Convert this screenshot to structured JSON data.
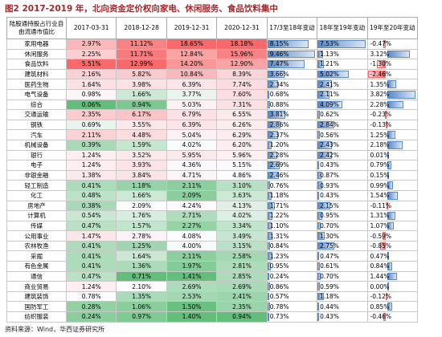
{
  "header": {
    "title": "图2  2017-2019 年，北向资金定价权向家电、休闲服务、食品饮料集中"
  },
  "table": {
    "header": [
      "陆股通持股占行业自由流通市值比",
      "2017-03-31",
      "2018-12-28",
      "2019-12-31",
      "2020-12-31",
      "17/3至18年变动",
      "18年至19年变动",
      "19年至20年变动"
    ],
    "rows": [
      {
        "label": "家用电器",
        "values": [
          2.97,
          11.12,
          18.65,
          18.18,
          8.15,
          7.53,
          -0.47
        ],
        "value_labels": [
          "2.97%",
          "11.12%",
          "18.65%",
          "18.18%",
          "8.15%",
          "7.53%",
          "-0.47%"
        ]
      },
      {
        "label": "休闲服务",
        "values": [
          2.25,
          11.71,
          12.84,
          15.96,
          9.46,
          1.13,
          3.12
        ],
        "value_labels": [
          "2.25%",
          "11.71%",
          "12.84%",
          "15.96%",
          "9.46%",
          "1.13%",
          "3.12%"
        ]
      },
      {
        "label": "食品饮料",
        "values": [
          5.51,
          12.99,
          14.2,
          12.9,
          7.47,
          1.21,
          -1.3
        ],
        "value_labels": [
          "5.51%",
          "12.99%",
          "14.20%",
          "12.90%",
          "7.47%",
          "1.21%",
          "-1.30%"
        ]
      },
      {
        "label": "建筑材料",
        "values": [
          2.16,
          5.82,
          10.84,
          8.39,
          3.66,
          5.02,
          -2.46
        ],
        "value_labels": [
          "2.16%",
          "5.82%",
          "10.84%",
          "8.39%",
          "3.66%",
          "5.02%",
          "-2.46%"
        ]
      },
      {
        "label": "医药生物",
        "values": [
          1.64,
          3.98,
          6.39,
          7.74,
          2.34,
          2.41,
          1.35
        ],
        "value_labels": [
          "1.64%",
          "3.98%",
          "6.39%",
          "7.74%",
          "2.34%",
          "2.41%",
          "1.35%"
        ]
      },
      {
        "label": "电气设备",
        "values": [
          0.98,
          1.66,
          3.77,
          7.6,
          0.68,
          2.11,
          3.82
        ],
        "value_labels": [
          "0.98%",
          "1.66%",
          "3.77%",
          "7.60%",
          "0.68%",
          "2.11%",
          "3.82%"
        ]
      },
      {
        "label": "综合",
        "values": [
          0.06,
          0.94,
          5.03,
          7.31,
          0.88,
          4.09,
          2.28
        ],
        "value_labels": [
          "0.06%",
          "0.94%",
          "5.03%",
          "7.31%",
          "0.88%",
          "4.09%",
          "2.28%"
        ]
      },
      {
        "label": "交通运输",
        "values": [
          2.35,
          6.17,
          6.79,
          6.55,
          3.81,
          0.62,
          -0.23
        ],
        "value_labels": [
          "2.35%",
          "6.17%",
          "6.79%",
          "6.55%",
          "3.81%",
          "0.62%",
          "-0.23%"
        ]
      },
      {
        "label": "钢铁",
        "values": [
          0.69,
          3.55,
          6.39,
          6.26,
          2.86,
          2.84,
          -0.13
        ],
        "value_labels": [
          "0.69%",
          "3.55%",
          "6.39%",
          "6.26%",
          "2.86%",
          "2.84%",
          "-0.13%"
        ]
      },
      {
        "label": "汽车",
        "values": [
          2.11,
          4.48,
          5.04,
          6.29,
          2.37,
          0.56,
          1.25
        ],
        "value_labels": [
          "2.11%",
          "4.48%",
          "5.04%",
          "6.29%",
          "2.37%",
          "0.56%",
          "1.25%"
        ]
      },
      {
        "label": "机械设备",
        "values": [
          0.39,
          1.59,
          4.02,
          6.2,
          1.2,
          2.43,
          2.18
        ],
        "value_labels": [
          "0.39%",
          "1.59%",
          "4.02%",
          "6.20%",
          "1.20%",
          "2.43%",
          "2.18%"
        ]
      },
      {
        "label": "银行",
        "values": [
          1.24,
          3.52,
          5.95,
          5.96,
          2.28,
          2.42,
          0.01
        ],
        "value_labels": [
          "1.24%",
          "3.52%",
          "5.95%",
          "5.96%",
          "2.28%",
          "2.42%",
          "0.01%"
        ]
      },
      {
        "label": "电子",
        "values": [
          1.24,
          3.93,
          4.36,
          5.15,
          2.69,
          0.43,
          0.79
        ],
        "value_labels": [
          "1.24%",
          "3.93%",
          "4.36%",
          "5.15%",
          "2.69%",
          "0.43%",
          "0.79%"
        ]
      },
      {
        "label": "非银金融",
        "values": [
          1.38,
          3.84,
          4.71,
          4.86,
          2.46,
          0.87,
          0.15
        ],
        "value_labels": [
          "1.38%",
          "3.84%",
          "4.71%",
          "4.86%",
          "2.46%",
          "0.87%",
          "0.15%"
        ]
      },
      {
        "label": "轻工制造",
        "values": [
          0.41,
          1.18,
          2.11,
          3.1,
          0.76,
          0.93,
          0.99
        ],
        "value_labels": [
          "0.41%",
          "1.18%",
          "2.11%",
          "3.10%",
          "0.76%",
          "0.93%",
          "0.99%"
        ]
      },
      {
        "label": "化工",
        "values": [
          0.48,
          1.66,
          2.09,
          3.63,
          1.18,
          0.43,
          1.54
        ],
        "value_labels": [
          "0.48%",
          "1.66%",
          "2.09%",
          "3.63%",
          "1.18%",
          "0.43%",
          "1.54%"
        ]
      },
      {
        "label": "房地产",
        "values": [
          0.38,
          2.09,
          4.24,
          4.13,
          1.71,
          2.15,
          -0.11
        ],
        "value_labels": [
          "0.38%",
          "2.09%",
          "4.24%",
          "4.13%",
          "1.71%",
          "2.15%",
          "-0.11%"
        ]
      },
      {
        "label": "计算机",
        "values": [
          0.54,
          1.76,
          2.71,
          4.02,
          1.22,
          0.95,
          1.31
        ],
        "value_labels": [
          "0.54%",
          "1.76%",
          "2.71%",
          "4.02%",
          "1.22%",
          "0.95%",
          "1.31%"
        ]
      },
      {
        "label": "传媒",
        "values": [
          0.47,
          1.57,
          2.27,
          3.34,
          1.1,
          0.7,
          1.07
        ],
        "value_labels": [
          "0.47%",
          "1.57%",
          "2.27%",
          "3.34%",
          "1.10%",
          "0.70%",
          "1.07%"
        ]
      },
      {
        "label": "公用事业",
        "values": [
          1.47,
          2.78,
          4.08,
          3.49,
          1.31,
          1.3,
          -0.59
        ],
        "value_labels": [
          "1.47%",
          "2.78%",
          "4.08%",
          "3.49%",
          "1.31%",
          "1.30%",
          "-0.59%"
        ]
      },
      {
        "label": "农林牧渔",
        "values": [
          0.41,
          1.25,
          4.0,
          3.15,
          0.84,
          2.75,
          -0.85
        ],
        "value_labels": [
          "0.41%",
          "1.25%",
          "4.00%",
          "3.15%",
          "0.84%",
          "2.75%",
          "-0.85%"
        ]
      },
      {
        "label": "采掘",
        "values": [
          0.41,
          1.64,
          2.11,
          2.58,
          1.23,
          0.47,
          0.47
        ],
        "value_labels": [
          "0.41%",
          "1.64%",
          "2.11%",
          "2.58%",
          "1.23%",
          "0.47%",
          "0.47%"
        ]
      },
      {
        "label": "有色金属",
        "values": [
          0.41,
          1.36,
          1.97,
          2.81,
          0.95,
          0.61,
          0.84
        ],
        "value_labels": [
          "0.41%",
          "1.36%",
          "1.97%",
          "2.81%",
          "0.95%",
          "0.61%",
          "0.84%"
        ]
      },
      {
        "label": "通信",
        "values": [
          0.47,
          0.71,
          1.41,
          2.85,
          0.24,
          0.7,
          1.44
        ],
        "value_labels": [
          "0.47%",
          "0.71%",
          "1.41%",
          "2.85%",
          "0.24%",
          "0.70%",
          "1.44%"
        ]
      },
      {
        "label": "商业贸易",
        "values": [
          1.24,
          2.1,
          2.69,
          2.69,
          0.86,
          0.59,
          0.0
        ],
        "value_labels": [
          "1.24%",
          "2.10%",
          "2.69%",
          "2.69%",
          "0.86%",
          "0.59%",
          "0.00%"
        ]
      },
      {
        "label": "建筑装饰",
        "values": [
          0.78,
          1.35,
          2.53,
          2.41,
          0.57,
          1.18,
          -0.12
        ],
        "value_labels": [
          "0.78%",
          "1.35%",
          "2.53%",
          "2.41%",
          "0.57%",
          "1.18%",
          "-0.12%"
        ]
      },
      {
        "label": "国防军工",
        "values": [
          0.28,
          1.06,
          1.5,
          2.35,
          0.78,
          0.44,
          0.85
        ],
        "value_labels": [
          "0.28%",
          "1.06%",
          "1.50%",
          "2.35%",
          "0.78%",
          "0.44%",
          "0.85%"
        ]
      },
      {
        "label": "纺织服装",
        "values": [
          0.24,
          0.97,
          1.4,
          0.94,
          0.73,
          0.43,
          -0.46
        ],
        "value_labels": [
          "0.24%",
          "0.97%",
          "1.40%",
          "0.94%",
          "0.73%",
          "0.43%",
          "-0.46%"
        ]
      }
    ]
  },
  "footer": {
    "source": "资料来源：Wind，华西证券研究所"
  }
}
